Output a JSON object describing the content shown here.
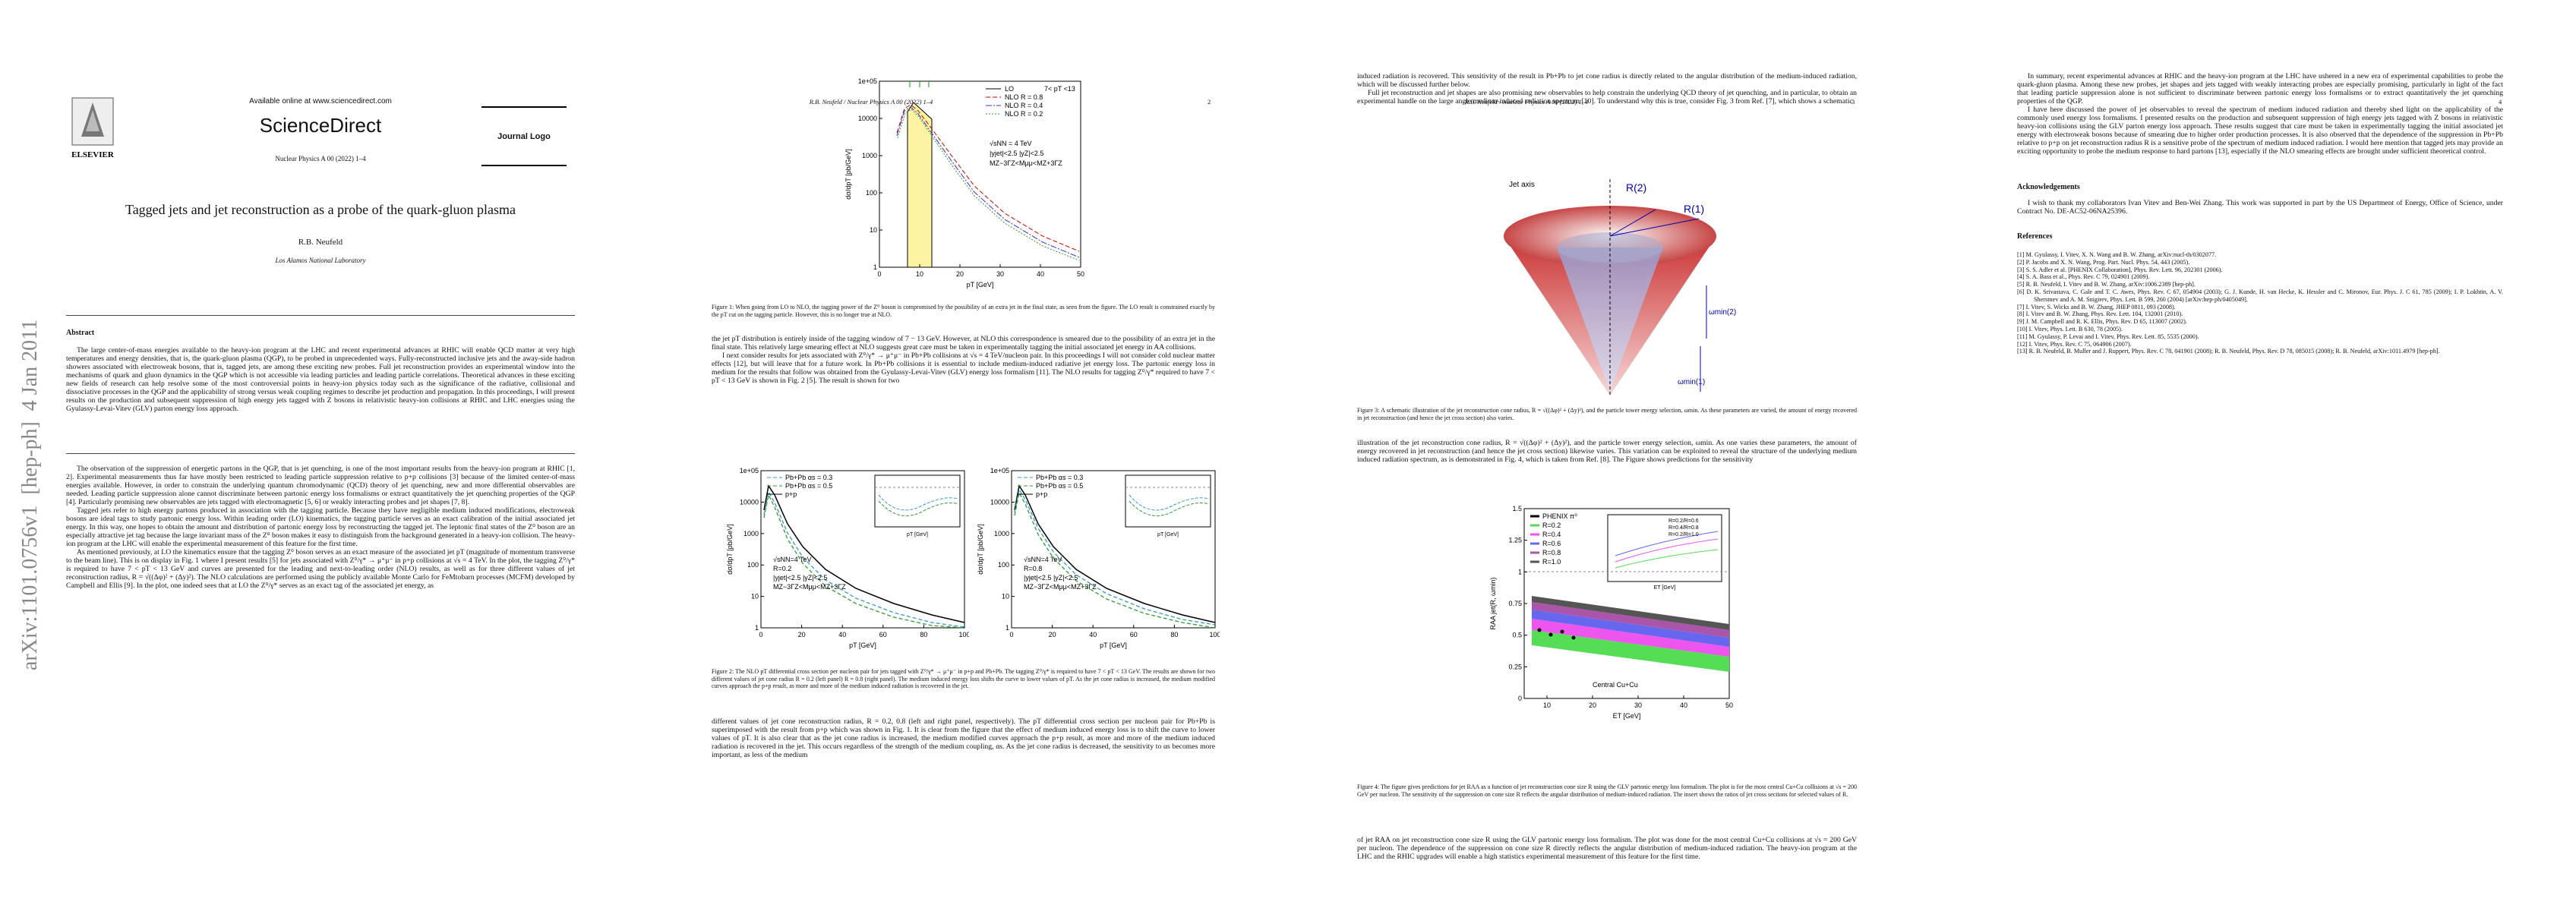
{
  "arxiv_stamp": "arXiv:1101.0756v1  [hep-ph]  4 Jan 2011",
  "page1": {
    "publisher": "ELSEVIER",
    "available_online": "Available online at www.sciencedirect.com",
    "brand": "ScienceDirect",
    "journal": "Nuclear Physics A 00 (2022) 1–4",
    "journal_logo": "Journal Logo",
    "title": "Tagged jets and jet reconstruction as a probe of the quark-gluon plasma",
    "author": "R.B. Neufeld",
    "affiliation": "Los Alamos National Laboratory",
    "abstract_heading": "Abstract",
    "abstract": "The large center-of-mass energies available to the heavy-ion program at the LHC and recent experimental advances at RHIC will enable QCD matter at very high temperatures and energy densities, that is, the quark-gluon plasma (QGP), to be probed in unprecedented ways. Fully-reconstructed inclusive jets and the away-side hadron showers associated with electroweak bosons, that is, tagged jets, are among these exciting new probes. Full jet reconstruction provides an experimental window into the mechanisms of quark and gluon dynamics in the QGP which is not accessible via leading particles and leading particle correlations. Theoretical advances in these exciting new fields of research can help resolve some of the most controversial points in heavy-ion physics today such as the significance of the radiative, collisional and dissociative processes in the QGP and the applicability of strong versus weak coupling regimes to describe jet production and propagation. In this proceedings, I will present results on the production and subsequent suppression of high energy jets tagged with Z bosons in relativistic heavy-ion collisions at RHIC and LHC energies using the Gyulassy-Levai-Vitev (GLV) parton energy loss approach.",
    "paragraphs": [
      "The observation of the suppression of energetic partons in the QGP, that is jet quenching, is one of the most important results from the heavy-ion program at RHIC [1, 2]. Experimental measurements thus far have mostly been restricted to leading particle suppression relative to p+p collisions [3] because of the limited center-of-mass energies available. However, in order to constrain the underlying quantum chromodynamic (QCD) theory of jet quenching, new and more differential observables are needed. Leading particle suppression alone cannot discriminate between partonic energy loss formalisms or extract quantitatively the jet quenching properties of the QGP [4]. Particularly promising new observables are jets tagged with electromagnetic [5, 6] or weakly interacting probes and jet shapes [7, 8].",
      "Tagged jets refer to high energy partons produced in association with the tagging particle. Because they have negligible medium induced modifications, electroweak bosons are ideal tags to study partonic energy loss. Within leading order (LO) kinematics, the tagging particle serves as an exact calibration of the initial associated jet energy. In this way, one hopes to obtain the amount and distribution of partonic energy loss by reconstructing the tagged jet. The leptonic final states of the Z⁰ boson are an especially attractive jet tag because the large invariant mass of the Z⁰ boson makes it easy to distinguish from the background generated in a heavy-ion collision. The heavy-ion program at the LHC will enable the experimental measurement of this feature for the first time.",
      "As mentioned previously, at LO the kinematics ensure that the tagging Z⁰ boson serves as an exact measure of the associated jet pT (magnitude of momentum transverse to the beam line). This is on display in Fig. 1 where I present results [5] for jets associated with Z⁰/γ* → μ⁺μ⁻ in p+p collisions at √s = 4 TeV. In the plot, the tagging Z⁰/γ* is required to have 7 < pT < 13 GeV and curves are presented for the leading and next-to-leading order (NLO) results, as well as for three different values of jet reconstruction radius, R = √((Δφ)² + (Δy)²). The NLO calculations are performed using the publicly available Monte Carlo for FeMtobarn processes (MCFM) developed by Campbell and Ellis [9]. In the plot, one indeed sees that at LO the Z⁰/γ* serves as an exact tag of the associated jet energy, as"
    ]
  },
  "page2": {
    "running_head": "R.B. Neufeld / Nuclear Physics A 00 (2022) 1–4",
    "page_number": "2",
    "figure1": {
      "ylabel": "dσ/dpT [pb/GeV]",
      "xlabel": "pT [GeV]",
      "yticks": [
        "1e+05",
        "10000",
        "1000",
        "100",
        "10",
        "1"
      ],
      "xticks": [
        "0",
        "10",
        "20",
        "30",
        "40",
        "50"
      ],
      "legend": [
        "LO",
        "NLO R = 0.8",
        "NLO R = 0.4",
        "NLO R = 0.2"
      ],
      "notes": [
        "7< pT <13",
        "√sNN = 4 TeV",
        "|yjet|<2.5 |yZ|<2.5",
        "MZ−3ΓZ<Mμμ<MZ+3ΓZ"
      ],
      "caption": "Figure 1: When going from LO to NLO, the tagging power of the Z⁰ boson is compromised by the possibility of an extra jet in the final state, as seen from the figure. The LO result is constrained exactly by the pT cut on the tagging particle. However, this is no longer true at NLO."
    },
    "paragraphs": [
      "the jet pT distribution is entirely inside of the tagging window of 7 − 13 GeV. However, at NLO this correspondence is smeared due to the possibility of an extra jet in the final state. This relatively large smearing effect at NLO suggests great care must be taken in experimentally tagging the initial associated jet energy in AA collisions.",
      "I next consider results for jets associated with Z⁰/γ* → μ⁺μ⁻ in Pb+Pb collisions at √s = 4 TeV/nucleon pair. In this proceedings I will not consider cold nuclear matter effects [12], but will leave that for a future work. In Pb+Pb collisions it is essential to include medium-induced radiative jet energy loss. The partonic energy loss in medium for the results that follow was obtained from the Gyulassy-Levai-Vitev (GLV) energy loss formalism [11]. The NLO results for tagging Z⁰/γ* required to have 7 < pT < 13 GeV is shown in Fig. 2 [5]. The result is shown for two",
      "different values of jet cone reconstruction radius, R = 0.2, 0.8 (left and right panel, respectively). The pT differential cross section per nucleon pair for Pb+Pb is superimposed with the result from p+p which was shown in Fig. 1. It is clear from the figure that the effect of medium induced energy loss is to shift the curve to lower values of pT. It is also clear that as the jet cone radius is increased, the medium modified curves approach the p+p result, as more and more of the medium induced radiation is recovered in the jet. This occurs regardless of the strength of the medium coupling, αs. As the jet cone radius is decreased, the sensitivity to αs becomes more important, as less of the medium"
    ],
    "figure2": {
      "ylabel": "dσ/dpT [pb/GeV]",
      "xlabel": "pT [GeV]",
      "yticks": [
        "1e+05",
        "10000",
        "1000",
        "100",
        "10",
        "1"
      ],
      "xticks": [
        "0",
        "20",
        "40",
        "60",
        "80",
        "100"
      ],
      "panels": [
        {
          "legend": [
            "Pb+Pb αs = 0.3",
            "Pb+Pb αs = 0.5",
            "p+p"
          ],
          "notes": [
            "√sNN=4 TeV",
            "R=0.2",
            "|yjet|<2.5 |yZ|<2.5",
            "MZ−3ΓZ<Mμμ<MZ+3ΓZ"
          ]
        },
        {
          "legend": [
            "Pb+Pb αs = 0.3",
            "Pb+Pb αs = 0.5",
            "p+p"
          ],
          "notes": [
            "√sNN=4 TeV",
            "R=0.8",
            "|yjet|<2.5 |yZ|<2.5",
            "MZ−3ΓZ<Mμμ<MZ+3ΓZ"
          ]
        }
      ],
      "inset_xlabel": "pT [GeV]",
      "caption": "Figure 2: The NLO pT differential cross section per nucleon pair for jets tagged with Z⁰/γ* → μ⁺μ⁻ in p+p and Pb+Pb. The tagging Z⁰/γ* is required to have 7 < pT < 13 GeV. The results are shown for two different values of jet cone radius R = 0.2 (left panel) R = 0.8 (right panel). The medium induced energy loss shifts the curve to lower values of pT. As the jet cone radius is increased, the medium modified curves approach the p+p result, as more and more of the medium induced radiation is recovered in the jet."
    }
  },
  "page3": {
    "running_head": "R.B. Neufeld / Nuclear Physics A 00 (2022) 1–4",
    "page_number": "3",
    "paragraphs": [
      "induced radiation is recovered. This sensitivity of the result in Pb+Pb to jet cone radius is directly related to the angular distribution of the medium-induced radiation, which will be discussed further below.",
      "Full jet reconstruction and jet shapes are also promising new observables to help constrain the underlying QCD theory of jet quenching, and in particular, to obtain an experimental handle on the large angle medium-induced radiation spectrum [10]. To understand why this is true, consider Fig. 3 from Ref. [7], which shows a schematic",
      "illustration of the jet reconstruction cone radius, R = √((Δφ)² + (Δy)²), and the particle tower energy selection, ωmin. As one varies these parameters, the amount of energy recovered in jet reconstruction (and hence the jet cross section) likewise varies. This variation can be exploited to reveal the structure of the underlying medium induced radiation spectrum, as is demonstrated in Fig. 4, which is taken from Ref. [8]. The Figure shows predictions for the sensitivity",
      "of jet RAA on jet reconstruction cone size R using the GLV partonic energy loss formalism. The plot was done for the most central Cu+Cu collisions at √s = 200 GeV per nucleon. The dependence of the suppression on cone size R directly reflects the angular distribution of medium-induced radiation. The heavy-ion program at the LHC and the RHIC upgrades will enable a high statistics experimental measurement of this feature for the first time."
    ],
    "figure3": {
      "labels": [
        "Jet axis",
        "R(2)",
        "R(1)",
        "ωmin(2)",
        "ωmin(1)"
      ],
      "caption": "Figure 3: A schematic illustration of the jet reconstruction cone radius, R = √((Δφ)² + (Δy)²), and the particle tower energy selection, ωmin. As these parameters are varied, the amount of energy recovered in jet reconstruction (and hence the jet cross section) also varies."
    },
    "figure4": {
      "ylabel": "RAA jet(R, ωmin)",
      "xlabel": "ET [GeV]",
      "yticks": [
        "1.5",
        "1.25",
        "1",
        "0.75",
        "0.5",
        "0.25",
        "0"
      ],
      "xticks": [
        "10",
        "20",
        "30",
        "40",
        "50"
      ],
      "legend": [
        "PHENIX π⁰",
        "R=0.2",
        "R=0.4",
        "R=0.6",
        "R=0.8",
        "R=1.0"
      ],
      "inset_legend": [
        "R=0.2/R=0.6",
        "R=0.4/R=0.8",
        "R=0.2/R=1.0"
      ],
      "inset_xlabel": "ET [GeV]",
      "note": "Central Cu+Cu",
      "caption": "Figure 4: The figure gives predictions for jet RAA as a function of jet reconstruction cone size R using the GLV partonic energy loss formalism. The plot is for the most central Cu+Cu collisions at √s = 200 GeV per nucleon. The sensitivity of the suppression on cone size R reflects the angular distribution of medium-induced radiation. The insert shows the ratios of jet cross sections for selected values of R."
    }
  },
  "page4": {
    "page_number": "4",
    "paragraphs": [
      "In summary, recent experimental advances at RHIC and the heavy-ion program at the LHC have ushered in a new era of experimental capabilities to probe the quark-gluon plasma. Among these new probes, jet shapes and jets tagged with weakly interacting probes are especially promising, particularly in light of the fact that leading particle suppression alone is not sufficient to discriminate between partonic energy loss formalisms or to extract quantitatively the jet quenching properties of the QGP.",
      "I have here discussed the power of jet observables to reveal the spectrum of medium induced radiation and thereby shed light on the applicability of the commonly used energy loss formalisms. I presented results on the production and subsequent suppression of high energy jets tagged with Z bosons in relativistic heavy-ion collisions using the GLV parton energy loss approach. These results suggest that care must be taken in experimentally tagging the initial associated jet energy with electroweak bosons because of smearing due to higher order production processes. It is also observed that the dependence of the suppression in Pb+Pb relative to p+p on jet reconstruction radius R is a sensitive probe of the spectrum of medium induced radiation. I would here mention that tagged jets may provide an exciting opportunity to probe the medium response to hard partons [13], especially if the NLO smearing effects are brought under sufficient theoretical control."
    ],
    "acknowledgements_heading": "Acknowledgements",
    "acknowledgements": "I wish to thank my collaborators Ivan Vitev and Ben-Wei Zhang. This work was supported in part by the US Department of Energy, Office of Science, under Contract No. DE-AC52-06NA25396.",
    "references_heading": "References",
    "references": [
      "[1] M. Gyulassy, I. Vitev, X. N. Wang and B. W. Zhang, arXiv:nucl-th/0302077.",
      "[2] P. Jacobs and X. N. Wang, Prog. Part. Nucl. Phys. 54, 443 (2005).",
      "[3] S. S. Adler et al. [PHENIX Collaboration], Phys. Rev. Lett. 96, 202301 (2006).",
      "[4] S. A. Bass et al., Phys. Rev. C 79, 024901 (2009).",
      "[5] R. B. Neufeld, I. Vitev and B. W. Zhang, arXiv:1006.2389 [hep-ph].",
      "[6] D. K. Srivastava, C. Gale and T. C. Awes, Phys. Rev. C 67, 054904 (2003); G. J. Kunde, H. van Hecke, K. Hessler and C. Mironov, Eur. Phys. J. C 61, 785 (2009); I. P. Lokhtin, A. V. Sherstnev and A. M. Snigirev, Phys. Lett. B 599, 260 (2004) [arXiv:hep-ph/0405049].",
      "[7] I. Vitev, S. Wicks and B. W. Zhang, JHEP 0811, 093 (2008).",
      "[8] I. Vitev and B. W. Zhang, Phys. Rev. Lett. 104, 132001 (2010).",
      "[9] J. M. Campbell and R. K. Ellis, Phys. Rev. D 65, 113007 (2002).",
      "[10] I. Vitev, Phys. Lett. B 630, 78 (2005).",
      "[11] M. Gyulassy, P. Levai and I. Vitev, Phys. Rev. Lett. 85, 5535 (2000).",
      "[12] I. Vitev, Phys. Rev. C 75, 064906 (2007).",
      "[13] R. B. Neufeld, B. Muller and J. Ruppert, Phys. Rev. C 78, 041901 (2008); R. B. Neufeld, Phys. Rev. D 78, 085015 (2008); R. B. Neufeld, arXiv:1011.4979 [hep-ph]."
    ]
  }
}
